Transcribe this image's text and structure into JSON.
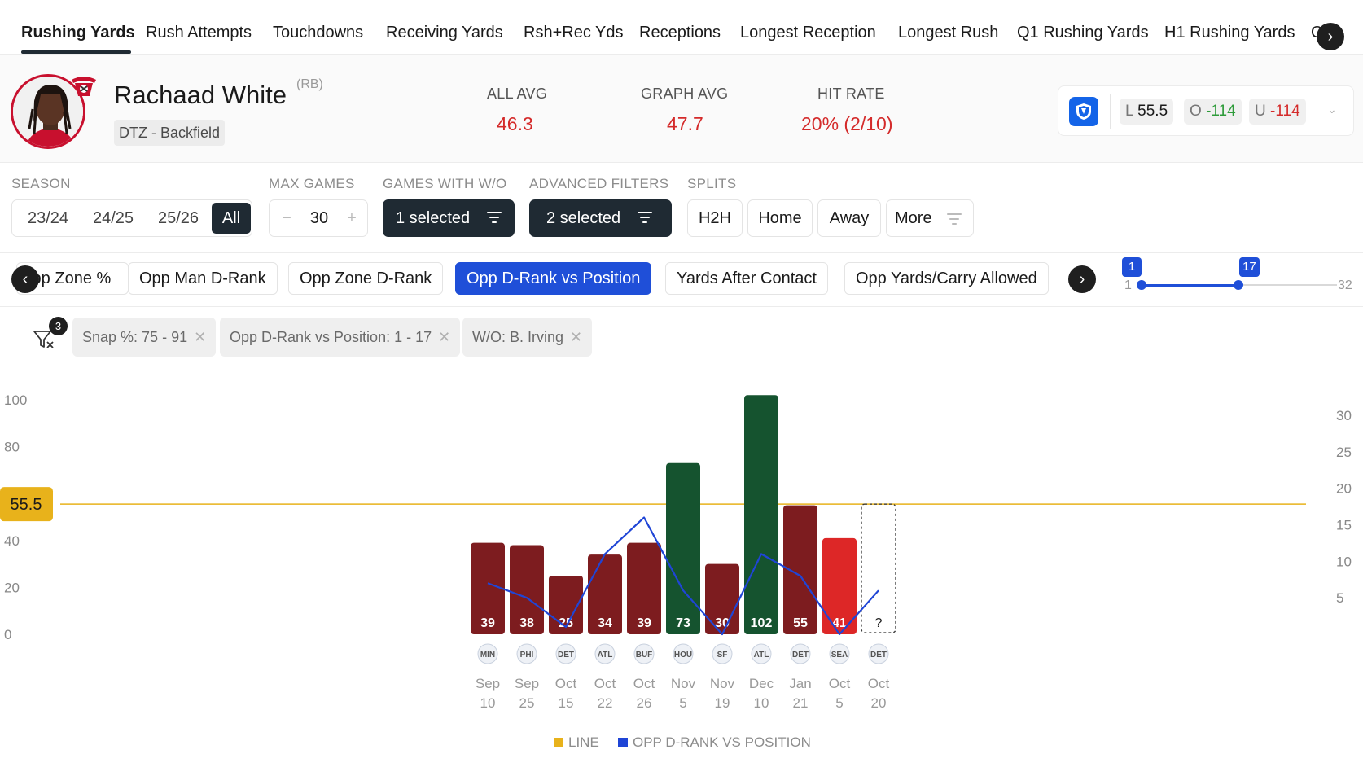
{
  "stat_tabs": [
    {
      "label": "Rushing Yards",
      "active": true
    },
    {
      "label": "Rush Attempts"
    },
    {
      "label": "Touchdowns"
    },
    {
      "label": "Receiving Yards"
    },
    {
      "label": "Rsh+Rec Yds"
    },
    {
      "label": "Receptions"
    },
    {
      "label": "Longest Reception"
    },
    {
      "label": "Longest Rush"
    },
    {
      "label": "Q1 Rushing Yards"
    },
    {
      "label": "H1 Rushing Yards"
    },
    {
      "label": "Q"
    }
  ],
  "player": {
    "name": "Rachaad White",
    "position": "(RB)",
    "tag": "DTZ - Backfield"
  },
  "metrics": {
    "all_avg_label": "ALL AVG",
    "all_avg": "46.3",
    "graph_avg_label": "GRAPH AVG",
    "graph_avg": "47.7",
    "hit_rate_label": "HIT RATE",
    "hit_rate": "20% (2/10)"
  },
  "odds": {
    "line_prefix": "L",
    "line": "55.5",
    "over_prefix": "O",
    "over": "-114",
    "under_prefix": "U",
    "under": "-114"
  },
  "filters": {
    "season_label": "SEASON",
    "seasons": [
      "23/24",
      "24/25",
      "25/26",
      "All"
    ],
    "season_selected": "All",
    "max_games_label": "MAX GAMES",
    "max_games": "30",
    "minus": "−",
    "plus": "+",
    "games_without_label": "GAMES WITH W/O",
    "games_without_value": "1 selected",
    "advanced_label": "ADVANCED FILTERS",
    "advanced_value": "2 selected",
    "splits_label": "SPLITS",
    "splits": [
      "H2H",
      "Home",
      "Away",
      "More"
    ]
  },
  "metric_chips": [
    {
      "label": "Opp Zone %"
    },
    {
      "label": "Opp Man D-Rank"
    },
    {
      "label": "Opp Zone D-Rank"
    },
    {
      "label": "Opp D-Rank vs Position",
      "active": true
    },
    {
      "label": "Yards After Contact"
    },
    {
      "label": "Opp Yards/Carry Allowed"
    }
  ],
  "range": {
    "min": "1",
    "max": "32",
    "low": "1",
    "high": "17"
  },
  "active_filters": {
    "count": "3",
    "tags": [
      "Snap %: 75 - 91",
      "Opp D-Rank vs Position: 1 - 17",
      "W/O: B. Irving"
    ]
  },
  "chart_data": {
    "type": "bar",
    "line_value": 55.5,
    "line_label": "55.5",
    "ylim": [
      0,
      100
    ],
    "y_ticks": [
      0,
      20,
      40,
      80,
      100
    ],
    "y2lim": [
      0,
      31
    ],
    "y2_ticks": [
      5,
      10,
      15,
      20,
      25,
      30
    ],
    "games": [
      {
        "month": "Sep",
        "day": "10",
        "opp": "MIN",
        "value": 39,
        "rank": 7
      },
      {
        "month": "Sep",
        "day": "25",
        "opp": "PHI",
        "value": 38,
        "rank": 5
      },
      {
        "month": "Oct",
        "day": "15",
        "opp": "DET",
        "value": 25,
        "rank": 1
      },
      {
        "month": "Oct",
        "day": "22",
        "opp": "ATL",
        "value": 34,
        "rank": 11
      },
      {
        "month": "Oct",
        "day": "26",
        "opp": "BUF",
        "value": 39,
        "rank": 16
      },
      {
        "month": "Nov",
        "day": "5",
        "opp": "HOU",
        "value": 73,
        "rank": 6
      },
      {
        "month": "Nov",
        "day": "19",
        "opp": "SF",
        "value": 30,
        "rank": 0
      },
      {
        "month": "Dec",
        "day": "10",
        "opp": "ATL",
        "value": 102,
        "rank": 11
      },
      {
        "month": "Jan",
        "day": "21",
        "opp": "DET",
        "value": 55,
        "rank": 8
      },
      {
        "month": "Oct",
        "day": "5",
        "opp": "SEA",
        "value": 41,
        "rank": 0
      },
      {
        "month": "Oct",
        "day": "20",
        "opp": "DET",
        "value": null,
        "value_label": "?",
        "rank": 6
      }
    ],
    "colors": {
      "under": "#7d1c1f",
      "over": "#15532f",
      "latest_under": "#dd2727",
      "line": "#e8b21b",
      "rank_line": "#1f45d6"
    },
    "legend": [
      {
        "label": "LINE",
        "color": "#e8b21b"
      },
      {
        "label": "OPP D-RANK VS POSITION",
        "color": "#1f45d6"
      }
    ]
  }
}
